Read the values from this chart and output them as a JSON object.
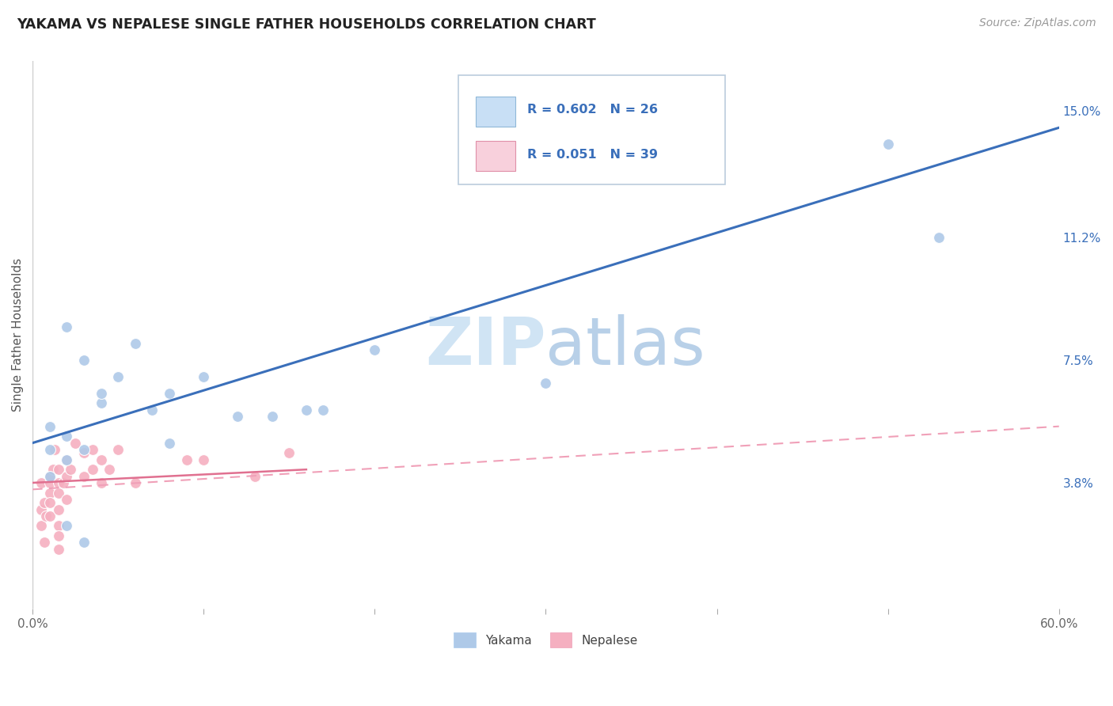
{
  "title": "YAKAMA VS NEPALESE SINGLE FATHER HOUSEHOLDS CORRELATION CHART",
  "source": "Source: ZipAtlas.com",
  "ylabel": "Single Father Households",
  "xlim": [
    0.0,
    0.6
  ],
  "ylim": [
    0.0,
    0.165
  ],
  "xtick_positions": [
    0.0,
    0.1,
    0.2,
    0.3,
    0.4,
    0.5,
    0.6
  ],
  "xticklabels": [
    "0.0%",
    "",
    "",
    "",
    "",
    "",
    "60.0%"
  ],
  "ytick_right_pos": [
    0.038,
    0.075,
    0.112,
    0.15
  ],
  "ytick_right_labels": [
    "3.8%",
    "7.5%",
    "11.2%",
    "15.0%"
  ],
  "yakama_R": 0.602,
  "yakama_N": 26,
  "nepalese_R": 0.051,
  "nepalese_N": 39,
  "yakama_color": "#aec9e8",
  "nepalese_color": "#f5afc0",
  "yakama_line_color": "#3a6fba",
  "nepalese_solid_color": "#e07090",
  "nepalese_dash_color": "#f0a0b8",
  "legend_box_yakama": "#c8dff5",
  "legend_box_nepalese": "#f8d0dc",
  "watermark_color": "#d0e4f4",
  "background_color": "#ffffff",
  "grid_color": "#c0d4e8",
  "yakama_x": [
    0.01,
    0.02,
    0.03,
    0.04,
    0.02,
    0.03,
    0.05,
    0.07,
    0.08,
    0.1,
    0.14,
    0.17,
    0.5,
    0.01,
    0.01,
    0.02,
    0.03,
    0.04,
    0.06,
    0.08,
    0.12,
    0.16,
    0.2,
    0.3,
    0.53,
    0.02
  ],
  "yakama_y": [
    0.055,
    0.085,
    0.075,
    0.062,
    0.045,
    0.048,
    0.07,
    0.06,
    0.05,
    0.07,
    0.058,
    0.06,
    0.14,
    0.048,
    0.04,
    0.025,
    0.02,
    0.065,
    0.08,
    0.065,
    0.058,
    0.06,
    0.078,
    0.068,
    0.112,
    0.052
  ],
  "nepalese_x": [
    0.005,
    0.005,
    0.005,
    0.007,
    0.007,
    0.008,
    0.01,
    0.01,
    0.01,
    0.01,
    0.01,
    0.012,
    0.013,
    0.015,
    0.015,
    0.015,
    0.015,
    0.015,
    0.015,
    0.015,
    0.018,
    0.02,
    0.02,
    0.02,
    0.022,
    0.025,
    0.03,
    0.03,
    0.035,
    0.035,
    0.04,
    0.04,
    0.045,
    0.05,
    0.06,
    0.09,
    0.1,
    0.13,
    0.15
  ],
  "nepalese_y": [
    0.038,
    0.03,
    0.025,
    0.032,
    0.02,
    0.028,
    0.038,
    0.04,
    0.035,
    0.032,
    0.028,
    0.042,
    0.048,
    0.042,
    0.038,
    0.035,
    0.03,
    0.025,
    0.022,
    0.018,
    0.038,
    0.045,
    0.04,
    0.033,
    0.042,
    0.05,
    0.047,
    0.04,
    0.048,
    0.042,
    0.045,
    0.038,
    0.042,
    0.048,
    0.038,
    0.045,
    0.045,
    0.04,
    0.047
  ],
  "yakama_trendline": [
    0.0,
    0.6,
    0.05,
    0.145
  ],
  "nepalese_trendline_solid": [
    0.0,
    0.16,
    0.038,
    0.042
  ],
  "nepalese_trendline_dash": [
    0.0,
    0.6,
    0.036,
    0.055
  ]
}
